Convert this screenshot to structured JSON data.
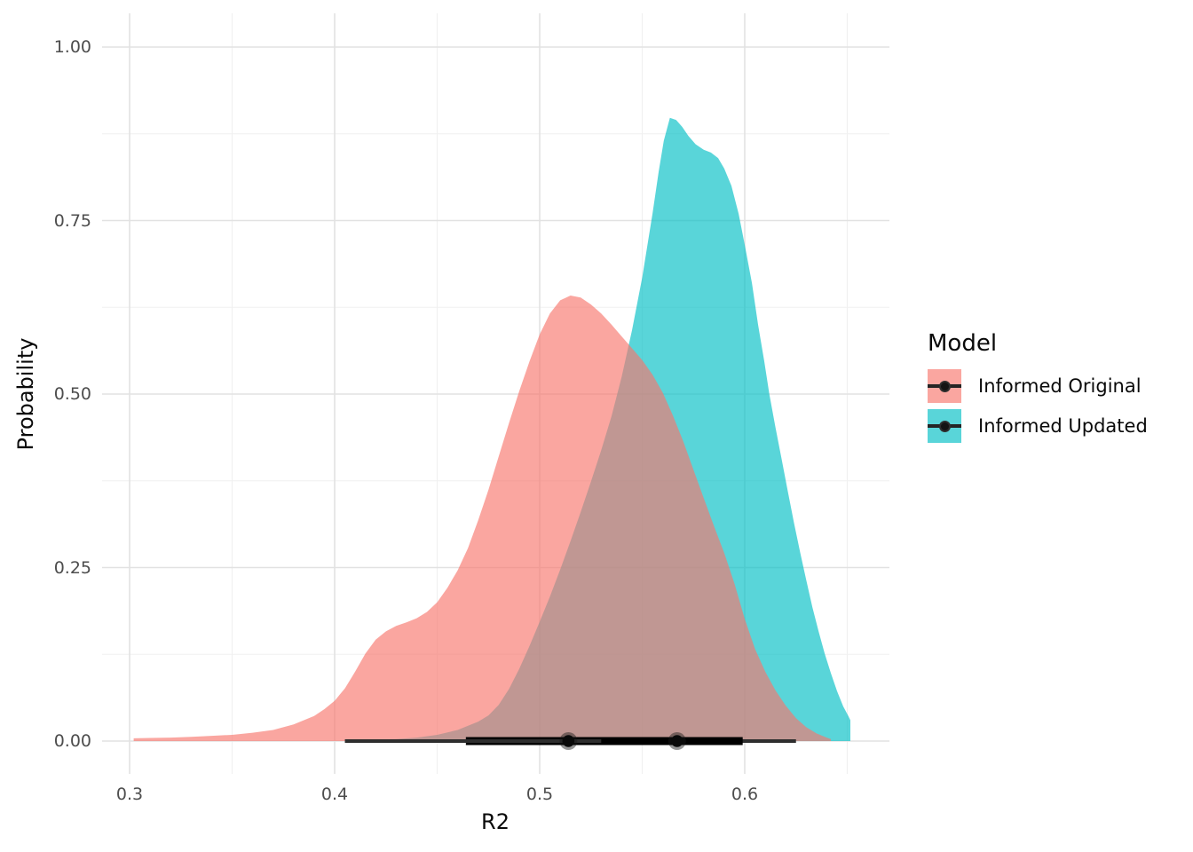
{
  "chart_data": {
    "type": "density",
    "title": "",
    "xlabel": "R2",
    "ylabel": "Probability",
    "x_axis": {
      "tick_labels": [
        "0.3",
        "0.4",
        "0.5",
        "0.6"
      ],
      "tick_values": [
        0.3,
        0.4,
        0.5,
        0.6
      ],
      "minor_values": [
        0.35,
        0.45,
        0.55,
        0.65
      ],
      "range": [
        0.2866,
        0.6706
      ]
    },
    "y_axis": {
      "tick_labels": [
        "0.00",
        "0.25",
        "0.50",
        "0.75",
        "1.00"
      ],
      "tick_values": [
        0,
        0.25,
        0.5,
        0.75,
        1.0
      ],
      "minor_values": [
        0.125,
        0.375,
        0.625,
        0.875
      ],
      "range": [
        -0.047,
        1.048
      ]
    },
    "grid": true,
    "legend": {
      "title": "Model",
      "position": "right"
    },
    "colors": {
      "major_grid": "#e2e2e2",
      "minor_grid": "#f0f0f0",
      "interval_thin": "#2e2e2e",
      "interval_thick": "#000000",
      "point": "#0a0a0a",
      "tick_text": "#4d4d4d",
      "title_text": "#0a0a0a"
    },
    "fill_alpha": 0.65,
    "series": [
      {
        "name": "Informed Original",
        "color": "#F8766D",
        "point_interval": {
          "median": 0.514,
          "q66": [
            0.464,
            0.556
          ],
          "q95": [
            0.405,
            0.601
          ]
        },
        "density": [
          [
            0.302,
            0.004
          ],
          [
            0.31,
            0.0045
          ],
          [
            0.32,
            0.005
          ],
          [
            0.33,
            0.006
          ],
          [
            0.34,
            0.0075
          ],
          [
            0.35,
            0.009
          ],
          [
            0.36,
            0.012
          ],
          [
            0.37,
            0.016
          ],
          [
            0.38,
            0.024
          ],
          [
            0.39,
            0.036
          ],
          [
            0.395,
            0.046
          ],
          [
            0.4,
            0.058
          ],
          [
            0.405,
            0.076
          ],
          [
            0.41,
            0.1
          ],
          [
            0.415,
            0.126
          ],
          [
            0.42,
            0.146
          ],
          [
            0.425,
            0.158
          ],
          [
            0.43,
            0.166
          ],
          [
            0.435,
            0.171
          ],
          [
            0.44,
            0.177
          ],
          [
            0.445,
            0.186
          ],
          [
            0.45,
            0.2
          ],
          [
            0.455,
            0.221
          ],
          [
            0.46,
            0.246
          ],
          [
            0.465,
            0.278
          ],
          [
            0.47,
            0.318
          ],
          [
            0.475,
            0.362
          ],
          [
            0.48,
            0.41
          ],
          [
            0.485,
            0.458
          ],
          [
            0.49,
            0.504
          ],
          [
            0.495,
            0.547
          ],
          [
            0.5,
            0.586
          ],
          [
            0.505,
            0.616
          ],
          [
            0.51,
            0.635
          ],
          [
            0.515,
            0.642
          ],
          [
            0.52,
            0.639
          ],
          [
            0.525,
            0.629
          ],
          [
            0.53,
            0.616
          ],
          [
            0.535,
            0.6
          ],
          [
            0.54,
            0.583
          ],
          [
            0.545,
            0.566
          ],
          [
            0.55,
            0.549
          ],
          [
            0.555,
            0.528
          ],
          [
            0.56,
            0.502
          ],
          [
            0.565,
            0.469
          ],
          [
            0.57,
            0.432
          ],
          [
            0.575,
            0.391
          ],
          [
            0.58,
            0.35
          ],
          [
            0.585,
            0.31
          ],
          [
            0.59,
            0.271
          ],
          [
            0.595,
            0.227
          ],
          [
            0.6,
            0.176
          ],
          [
            0.605,
            0.133
          ],
          [
            0.61,
            0.1
          ],
          [
            0.615,
            0.073
          ],
          [
            0.62,
            0.051
          ],
          [
            0.625,
            0.033
          ],
          [
            0.63,
            0.02
          ],
          [
            0.635,
            0.011
          ],
          [
            0.64,
            0.005
          ],
          [
            0.642,
            0.003
          ]
        ]
      },
      {
        "name": "Informed Updated",
        "color": "#00BFC4",
        "point_interval": {
          "median": 0.567,
          "q66": [
            0.53,
            0.599
          ],
          "q95": [
            0.459,
            0.625
          ]
        },
        "density": [
          [
            0.42,
            0.002
          ],
          [
            0.43,
            0.003
          ],
          [
            0.44,
            0.005
          ],
          [
            0.45,
            0.009
          ],
          [
            0.46,
            0.016
          ],
          [
            0.47,
            0.028
          ],
          [
            0.475,
            0.037
          ],
          [
            0.48,
            0.052
          ],
          [
            0.485,
            0.075
          ],
          [
            0.49,
            0.104
          ],
          [
            0.495,
            0.137
          ],
          [
            0.5,
            0.172
          ],
          [
            0.505,
            0.208
          ],
          [
            0.51,
            0.247
          ],
          [
            0.515,
            0.288
          ],
          [
            0.52,
            0.33
          ],
          [
            0.525,
            0.374
          ],
          [
            0.53,
            0.419
          ],
          [
            0.535,
            0.468
          ],
          [
            0.54,
            0.525
          ],
          [
            0.545,
            0.592
          ],
          [
            0.55,
            0.668
          ],
          [
            0.555,
            0.76
          ],
          [
            0.558,
            0.82
          ],
          [
            0.5605,
            0.865
          ],
          [
            0.5635,
            0.898
          ],
          [
            0.5665,
            0.895
          ],
          [
            0.5695,
            0.885
          ],
          [
            0.5725,
            0.872
          ],
          [
            0.576,
            0.86
          ],
          [
            0.58,
            0.852
          ],
          [
            0.5835,
            0.848
          ],
          [
            0.587,
            0.84
          ],
          [
            0.59,
            0.825
          ],
          [
            0.5935,
            0.8
          ],
          [
            0.597,
            0.76
          ],
          [
            0.6,
            0.715
          ],
          [
            0.6035,
            0.66
          ],
          [
            0.6065,
            0.6
          ],
          [
            0.6095,
            0.548
          ],
          [
            0.612,
            0.5
          ],
          [
            0.615,
            0.452
          ],
          [
            0.618,
            0.406
          ],
          [
            0.621,
            0.36
          ],
          [
            0.624,
            0.315
          ],
          [
            0.627,
            0.272
          ],
          [
            0.63,
            0.232
          ],
          [
            0.633,
            0.193
          ],
          [
            0.636,
            0.158
          ],
          [
            0.639,
            0.126
          ],
          [
            0.642,
            0.098
          ],
          [
            0.645,
            0.072
          ],
          [
            0.648,
            0.05
          ],
          [
            0.6505,
            0.036
          ],
          [
            0.6515,
            0.03
          ]
        ]
      }
    ]
  }
}
